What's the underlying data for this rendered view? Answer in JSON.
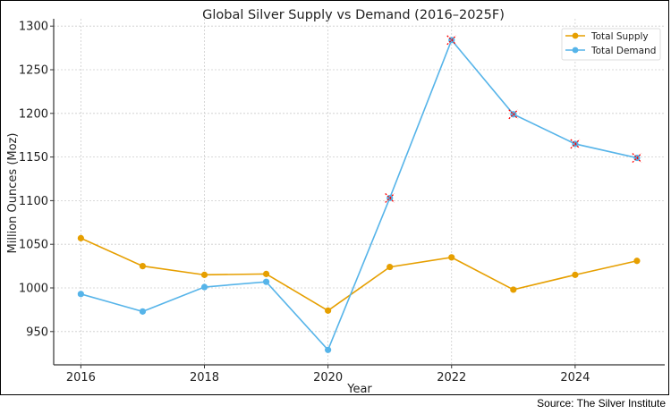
{
  "chart_data": {
    "type": "line",
    "title": "Global Silver Supply vs Demand (2016–2025F)",
    "xlabel": "Year",
    "ylabel": "Million Ounces (Moz)",
    "x": [
      2016,
      2017,
      2018,
      2019,
      2020,
      2021,
      2022,
      2023,
      2024,
      2025
    ],
    "xticks": [
      "2016",
      "2018",
      "2020",
      "2022",
      "2024"
    ],
    "yticks": [
      "950",
      "1000",
      "1050",
      "1100",
      "1150",
      "1200",
      "1250",
      "1300"
    ],
    "xlim": [
      2015.56,
      2025.45
    ],
    "ylim": [
      912,
      1300
    ],
    "grid": true,
    "legend_position": "top-right",
    "series": [
      {
        "name": "Total Supply",
        "color": "#E69F00",
        "values": [
          1057,
          1025,
          1015,
          1016,
          974,
          1024,
          1035,
          998,
          1015,
          1031
        ]
      },
      {
        "name": "Total Demand",
        "color": "#56B4E9",
        "values": [
          993,
          973,
          1001,
          1007,
          929,
          1103,
          1284,
          1199,
          1165,
          1149
        ],
        "highlighted_years": [
          2021,
          2022,
          2023,
          2024,
          2025
        ],
        "highlight_color": "#FF0000"
      }
    ]
  },
  "source": "Source: The Silver Institute"
}
